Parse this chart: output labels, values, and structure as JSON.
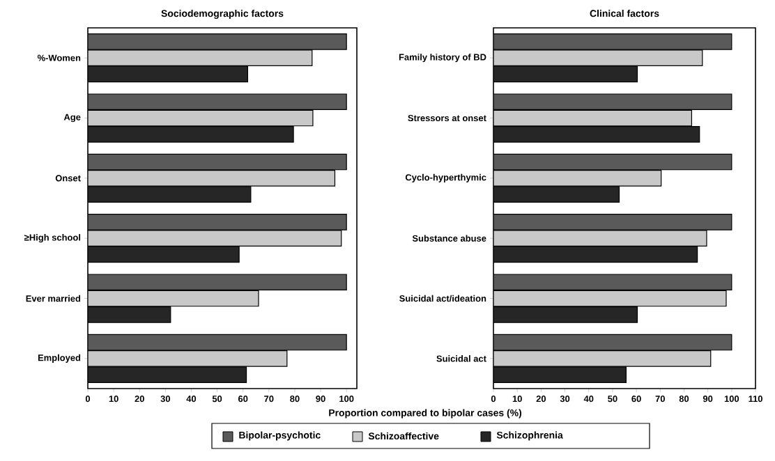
{
  "chart_data": [
    {
      "type": "bar",
      "orientation": "horizontal",
      "title": "Sociodemographic factors",
      "xlabel": "Proportion compared to bipolar cases (%)",
      "categories": [
        "%-Women",
        "Age",
        "Onset",
        "≥High school",
        "Ever married",
        "Employed"
      ],
      "xlim": [
        0,
        104
      ],
      "xticks": [
        0,
        10,
        20,
        30,
        40,
        50,
        60,
        70,
        80,
        90,
        100
      ],
      "legend": "bottom",
      "series": [
        {
          "name": "Bipolar-psychotic",
          "color": "#5a5a5a",
          "values": [
            100,
            100,
            100,
            100,
            100,
            100
          ]
        },
        {
          "name": "Schizoaffective",
          "color": "#c8c8c8",
          "values": [
            86.7,
            87,
            95.5,
            98,
            66,
            77
          ]
        },
        {
          "name": "Schizophrenia",
          "color": "#262626",
          "values": [
            61.8,
            79.5,
            63,
            58.5,
            32,
            61.3
          ]
        }
      ]
    },
    {
      "type": "bar",
      "orientation": "horizontal",
      "title": "Clinical factors",
      "categories": [
        "Family history of BD",
        "Stressors at onset",
        "Cyclo-hyperthymic",
        "Substance abuse",
        "Suicidal act/ideation",
        "Suicidal act"
      ],
      "xlim": [
        0,
        110
      ],
      "xticks": [
        0,
        10,
        20,
        30,
        40,
        50,
        60,
        70,
        80,
        90,
        100,
        110
      ],
      "series": [
        {
          "color": "#5a5a5a",
          "values": [
            100,
            100,
            100,
            100,
            100,
            100
          ]
        },
        {
          "color": "#c8c8c8",
          "values": [
            87.7,
            83.2,
            70.4,
            89.5,
            97.7,
            91.2
          ]
        },
        {
          "color": "#262626",
          "values": [
            60.4,
            86.5,
            52.8,
            85.6,
            60.4,
            55.7
          ]
        }
      ]
    }
  ]
}
